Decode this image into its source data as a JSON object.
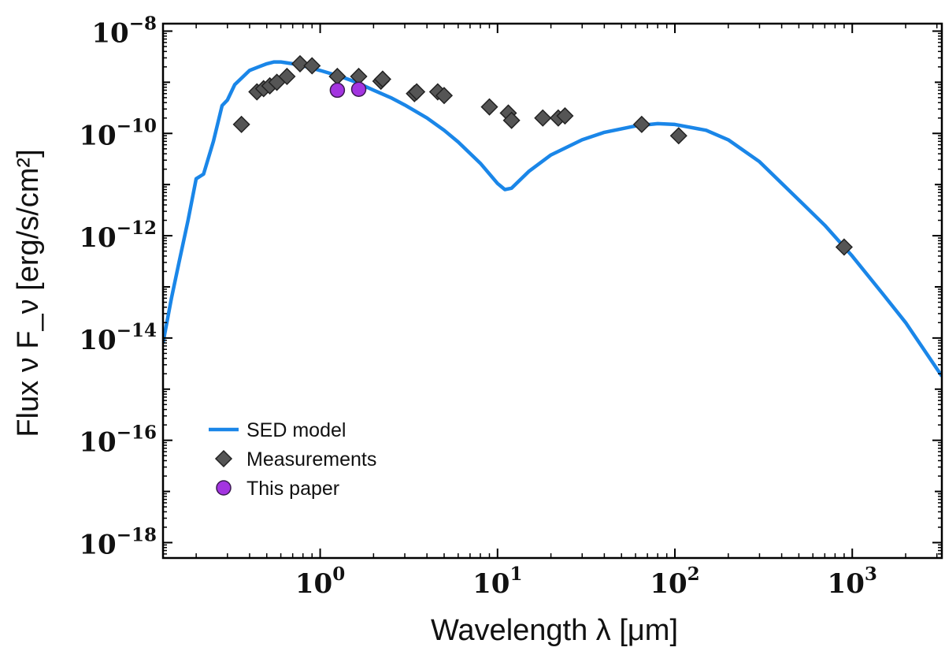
{
  "chart_data": {
    "type": "scatter",
    "title": "",
    "xlabel": "Wavelength λ [μm]",
    "ylabel": "Flux ν F_ν [erg/s/cm²]",
    "xscale": "log",
    "yscale": "log",
    "xlim": [
      0.13,
      3200
    ],
    "ylim": [
      5e-19,
      1.4e-08
    ],
    "x_ticks": [
      {
        "value": 1,
        "base": "10",
        "exp": "0"
      },
      {
        "value": 10,
        "base": "10",
        "exp": "1"
      },
      {
        "value": 100,
        "base": "10",
        "exp": "2"
      },
      {
        "value": 1000,
        "base": "10",
        "exp": "3"
      }
    ],
    "y_ticks": [
      {
        "value": 1e-08,
        "base": "10",
        "exp": "−8"
      },
      {
        "value": 1e-10,
        "base": "10",
        "exp": "−10"
      },
      {
        "value": 1e-12,
        "base": "10",
        "exp": "−12"
      },
      {
        "value": 1e-14,
        "base": "10",
        "exp": "−14"
      },
      {
        "value": 1e-16,
        "base": "10",
        "exp": "−16"
      },
      {
        "value": 1e-18,
        "base": "10",
        "exp": "−18"
      }
    ],
    "legend_position": "bottom-left",
    "series": [
      {
        "name": "SED model",
        "kind": "line",
        "color": "#1a86e8",
        "x": [
          0.13,
          0.145,
          0.16,
          0.18,
          0.2,
          0.22,
          0.25,
          0.28,
          0.3,
          0.33,
          0.36,
          0.4,
          0.45,
          0.5,
          0.55,
          0.6,
          0.7,
          0.8,
          1.0,
          1.3,
          1.6,
          2.0,
          2.5,
          3.0,
          4.0,
          5.0,
          6.0,
          8.0,
          10.0,
          11.0,
          12.0,
          15.0,
          20.0,
          30.0,
          40.0,
          60.0,
          80.0,
          100.0,
          150.0,
          200.0,
          300.0,
          500.0,
          700.0,
          1000.0,
          1500.0,
          2000.0,
          3200.0
        ],
        "y": [
          8e-15,
          6e-14,
          3e-13,
          2e-12,
          1.3e-11,
          1.6e-11,
          7e-11,
          3.5e-10,
          4.5e-10,
          9e-10,
          1.2e-09,
          1.7e-09,
          2e-09,
          2.3e-09,
          2.5e-09,
          2.5e-09,
          2.3e-09,
          2.1e-09,
          1.7e-09,
          1.3e-09,
          1e-09,
          7e-10,
          5e-10,
          3.6e-10,
          2e-10,
          1.15e-10,
          6.8e-11,
          2.6e-11,
          1.05e-11,
          8e-12,
          8.5e-12,
          1.8e-11,
          3.8e-11,
          7.5e-11,
          1.05e-10,
          1.4e-10,
          1.55e-10,
          1.5e-10,
          1.15e-10,
          7.5e-11,
          2.8e-11,
          5e-12,
          1.6e-12,
          4e-13,
          7e-14,
          2e-14,
          1.8e-15
        ]
      },
      {
        "name": "Measurements",
        "kind": "scatter",
        "marker": "diamond",
        "color": "#555555",
        "x": [
          0.36,
          0.44,
          0.48,
          0.52,
          0.57,
          0.65,
          0.77,
          0.9,
          1.25,
          1.65,
          2.2,
          2.25,
          3.4,
          3.5,
          4.6,
          5.0,
          9.0,
          11.5,
          12.0,
          18.0,
          22.0,
          24.0,
          65.0,
          105.0,
          900.0
        ],
        "y": [
          1.5e-10,
          6.5e-10,
          7.5e-10,
          8.5e-10,
          1e-09,
          1.3e-09,
          2.3e-09,
          2.1e-09,
          1.3e-09,
          1.3e-09,
          1.05e-09,
          1.15e-09,
          6e-10,
          6.5e-10,
          6.5e-10,
          5.5e-10,
          3.3e-10,
          2.5e-10,
          1.8e-10,
          2e-10,
          2e-10,
          2.2e-10,
          1.5e-10,
          9e-11,
          6e-13
        ]
      },
      {
        "name": "This paper",
        "kind": "scatter",
        "marker": "circle",
        "color": "#a334e0",
        "x": [
          1.25,
          1.65
        ],
        "y": [
          7e-10,
          7.3e-10
        ]
      }
    ]
  }
}
